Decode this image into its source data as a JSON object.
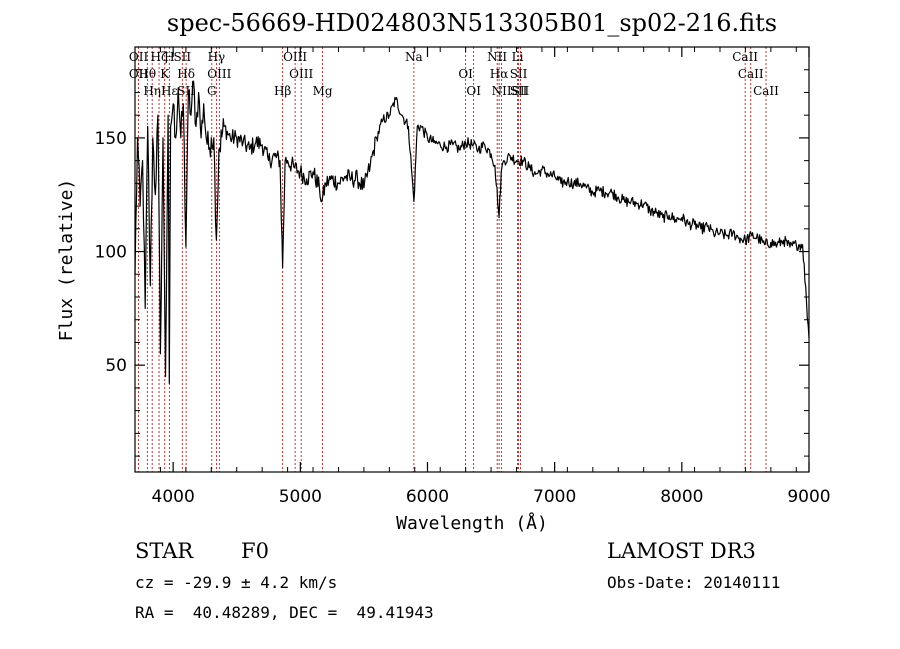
{
  "chart_data": {
    "type": "line",
    "title": "spec-56669-HD024803N513305B01_sp02-216.fits",
    "xlabel": "Wavelength (Å)",
    "ylabel": "Flux (relative)",
    "xlim": [
      3700,
      9000
    ],
    "ylim": [
      3,
      190
    ],
    "x_ticks": [
      4000,
      5000,
      6000,
      7000,
      8000,
      9000
    ],
    "y_ticks": [
      50,
      100,
      150
    ],
    "grid": false,
    "legend": "none",
    "series": [
      {
        "color": "#000000",
        "anchors": [
          [
            3700,
            90
          ],
          [
            3720,
            150
          ],
          [
            3740,
            120
          ],
          [
            3760,
            140
          ],
          [
            3780,
            75
          ],
          [
            3800,
            155
          ],
          [
            3820,
            85
          ],
          [
            3840,
            150
          ],
          [
            3860,
            125
          ],
          [
            3880,
            160
          ],
          [
            3900,
            55
          ],
          [
            3920,
            150
          ],
          [
            3940,
            45
          ],
          [
            3960,
            160
          ],
          [
            3970,
            42
          ],
          [
            3980,
            155
          ],
          [
            4000,
            165
          ],
          [
            4020,
            150
          ],
          [
            4040,
            172
          ],
          [
            4060,
            150
          ],
          [
            4080,
            165
          ],
          [
            4100,
            102
          ],
          [
            4120,
            170
          ],
          [
            4140,
            160
          ],
          [
            4160,
            175
          ],
          [
            4180,
            155
          ],
          [
            4200,
            170
          ],
          [
            4220,
            150
          ],
          [
            4240,
            165
          ],
          [
            4260,
            150
          ],
          [
            4280,
            145
          ],
          [
            4300,
            150
          ],
          [
            4320,
            150
          ],
          [
            4340,
            105
          ],
          [
            4360,
            145
          ],
          [
            4400,
            155
          ],
          [
            4450,
            150
          ],
          [
            4500,
            150
          ],
          [
            4550,
            148
          ],
          [
            4600,
            145
          ],
          [
            4650,
            148
          ],
          [
            4700,
            147
          ],
          [
            4750,
            140
          ],
          [
            4800,
            142
          ],
          [
            4840,
            140
          ],
          [
            4861,
            93
          ],
          [
            4880,
            140
          ],
          [
            4900,
            140
          ],
          [
            4950,
            137
          ],
          [
            5000,
            135
          ],
          [
            5050,
            132
          ],
          [
            5100,
            135
          ],
          [
            5150,
            128
          ],
          [
            5170,
            122
          ],
          [
            5200,
            130
          ],
          [
            5250,
            132
          ],
          [
            5300,
            130
          ],
          [
            5350,
            133
          ],
          [
            5400,
            132
          ],
          [
            5450,
            132
          ],
          [
            5500,
            128
          ],
          [
            5550,
            138
          ],
          [
            5600,
            150
          ],
          [
            5650,
            158
          ],
          [
            5700,
            160
          ],
          [
            5750,
            167
          ],
          [
            5800,
            160
          ],
          [
            5850,
            155
          ],
          [
            5893,
            122
          ],
          [
            5920,
            155
          ],
          [
            5950,
            155
          ],
          [
            6000,
            150
          ],
          [
            6050,
            148
          ],
          [
            6100,
            147
          ],
          [
            6150,
            146
          ],
          [
            6200,
            147
          ],
          [
            6250,
            145
          ],
          [
            6300,
            148
          ],
          [
            6350,
            147
          ],
          [
            6400,
            145
          ],
          [
            6450,
            147
          ],
          [
            6500,
            143
          ],
          [
            6530,
            138
          ],
          [
            6563,
            115
          ],
          [
            6580,
            135
          ],
          [
            6600,
            140
          ],
          [
            6650,
            142
          ],
          [
            6700,
            140
          ],
          [
            6750,
            140
          ],
          [
            6800,
            137
          ],
          [
            6850,
            134
          ],
          [
            6900,
            136
          ],
          [
            6950,
            134
          ],
          [
            7000,
            133
          ],
          [
            7050,
            130
          ],
          [
            7100,
            131
          ],
          [
            7150,
            130
          ],
          [
            7200,
            130
          ],
          [
            7250,
            128
          ],
          [
            7300,
            126
          ],
          [
            7350,
            127
          ],
          [
            7400,
            126
          ],
          [
            7450,
            126
          ],
          [
            7500,
            124
          ],
          [
            7550,
            122
          ],
          [
            7600,
            122
          ],
          [
            7650,
            121
          ],
          [
            7700,
            121
          ],
          [
            7750,
            118
          ],
          [
            7800,
            117
          ],
          [
            7850,
            115
          ],
          [
            7900,
            116
          ],
          [
            7950,
            114
          ],
          [
            8000,
            115
          ],
          [
            8050,
            112
          ],
          [
            8100,
            112
          ],
          [
            8150,
            110
          ],
          [
            8200,
            111
          ],
          [
            8250,
            108
          ],
          [
            8300,
            108
          ],
          [
            8350,
            107
          ],
          [
            8400,
            108
          ],
          [
            8450,
            106
          ],
          [
            8500,
            105
          ],
          [
            8550,
            107
          ],
          [
            8600,
            106
          ],
          [
            8650,
            103
          ],
          [
            8700,
            104
          ],
          [
            8750,
            103
          ],
          [
            8800,
            105
          ],
          [
            8850,
            102
          ],
          [
            8900,
            103
          ],
          [
            8950,
            103
          ],
          [
            8980,
            78
          ],
          [
            9000,
            62
          ]
        ]
      }
    ],
    "line_markers": [
      {
        "wavelength": 3728,
        "labels": [
          "OII",
          "OII"
        ]
      },
      {
        "wavelength": 3797,
        "labels": [
          "Hθ"
        ]
      },
      {
        "wavelength": 3835,
        "labels": [
          "Hη"
        ]
      },
      {
        "wavelength": 3889,
        "labels": [
          "Hζ"
        ]
      },
      {
        "wavelength": 3934,
        "labels": [
          "K"
        ]
      },
      {
        "wavelength": 3970,
        "labels": [
          "Hε",
          "H"
        ]
      },
      {
        "wavelength": 4072,
        "labels": [
          "SII"
        ]
      },
      {
        "wavelength": 4102,
        "labels": [
          "Hδ",
          "SII"
        ]
      },
      {
        "wavelength": 4304,
        "labels": [
          "G"
        ]
      },
      {
        "wavelength": 4340,
        "labels": [
          "Hγ"
        ]
      },
      {
        "wavelength": 4363,
        "labels": [
          "OIII"
        ]
      },
      {
        "wavelength": 4861,
        "labels": [
          "Hβ"
        ]
      },
      {
        "wavelength": 4959,
        "labels": [
          "OIII"
        ]
      },
      {
        "wavelength": 5007,
        "labels": [
          "OIII"
        ]
      },
      {
        "wavelength": 5175,
        "labels": [
          "Mg"
        ]
      },
      {
        "wavelength": 5893,
        "labels": [
          "Na"
        ]
      },
      {
        "wavelength": 6300,
        "labels": [
          "OI"
        ]
      },
      {
        "wavelength": 6363,
        "labels": [
          "OI"
        ]
      },
      {
        "wavelength": 6548,
        "labels": [
          "NII"
        ]
      },
      {
        "wavelength": 6563,
        "labels": [
          "Hα"
        ]
      },
      {
        "wavelength": 6583,
        "labels": [
          "NII"
        ]
      },
      {
        "wavelength": 6708,
        "labels": [
          "Li"
        ]
      },
      {
        "wavelength": 6716,
        "labels": [
          "SII",
          "SII"
        ]
      },
      {
        "wavelength": 6731,
        "labels": [
          "SII"
        ]
      },
      {
        "wavelength": 8498,
        "labels": [
          "CaII"
        ]
      },
      {
        "wavelength": 8542,
        "labels": [
          "CaII"
        ]
      },
      {
        "wavelength": 8662,
        "labels": [
          "CaII"
        ]
      }
    ]
  },
  "info": {
    "object_class": "STAR",
    "subclass": "F0",
    "survey": "LAMOST DR3",
    "redshift_line": "cz = -29.9 ± 4.2 km/s",
    "obs_date_line": "Obs-Date: 20140111",
    "coords_line": "RA =  40.48289, DEC =  49.41943"
  }
}
